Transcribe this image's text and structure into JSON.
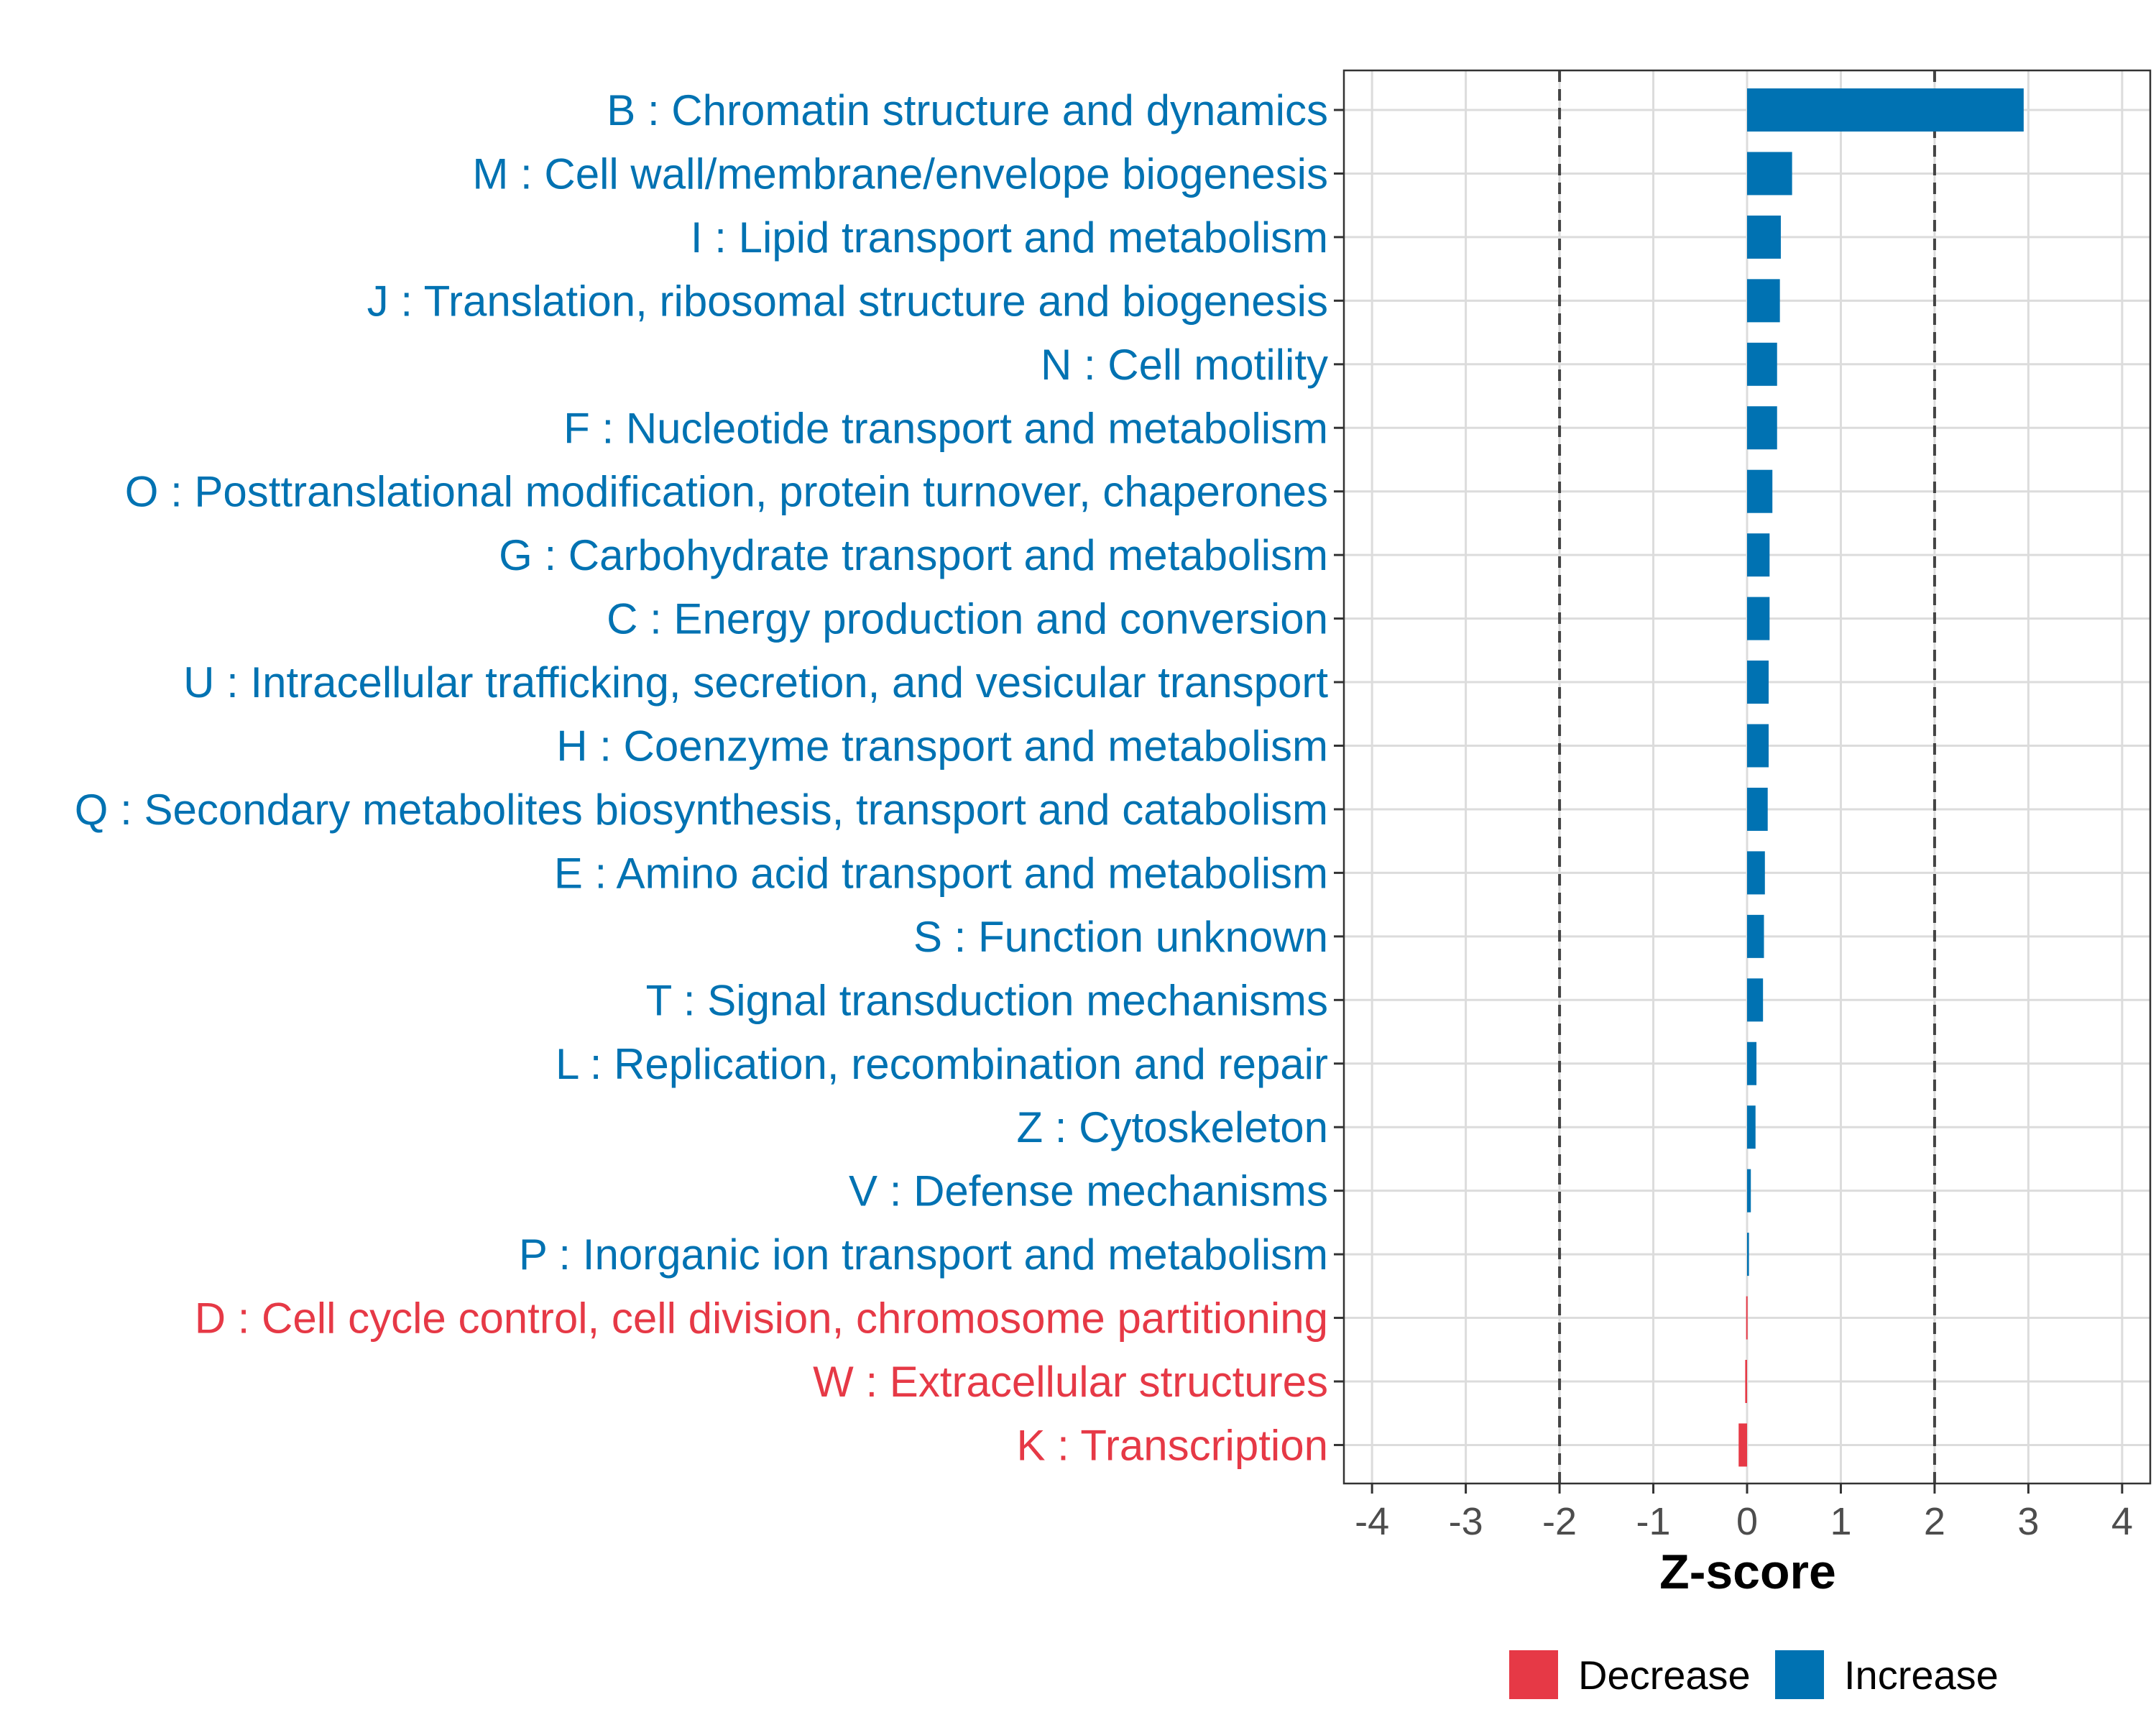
{
  "chart_data": {
    "type": "bar",
    "orientation": "horizontal",
    "xlabel": "Z-score",
    "ylabel": "",
    "xlim": [
      -4.3,
      4.3
    ],
    "xticks": [
      -4,
      -3,
      -2,
      -1,
      0,
      1,
      2,
      3,
      4
    ],
    "xtick_labels": [
      "-4",
      "-3",
      "-2",
      "-1",
      "0",
      "1",
      "2",
      "3",
      "4"
    ],
    "threshold_lines": [
      -2,
      2
    ],
    "grid": true,
    "legend_position": "bottom",
    "colors": {
      "Increase": "#0072b2",
      "Decrease": "#e63946"
    },
    "legend": [
      {
        "name": "Decrease",
        "color": "#e63946"
      },
      {
        "name": "Increase",
        "color": "#0072b2"
      }
    ],
    "categories": [
      "B : Chromatin structure and dynamics",
      "M : Cell wall/membrane/envelope biogenesis",
      "I : Lipid transport and metabolism",
      "J : Translation, ribosomal structure and biogenesis",
      "N : Cell motility",
      "F : Nucleotide transport and metabolism",
      "O : Posttranslational modification, protein turnover, chaperones",
      "G : Carbohydrate transport and metabolism",
      "C : Energy production and conversion",
      "U : Intracellular trafficking, secretion, and vesicular transport",
      "H : Coenzyme transport and metabolism",
      "Q : Secondary metabolites biosynthesis, transport and catabolism",
      "E : Amino acid transport and metabolism",
      "S : Function unknown",
      "T : Signal transduction mechanisms",
      "L : Replication, recombination and repair",
      "Z : Cytoskeleton",
      "V : Defense mechanisms",
      "P : Inorganic ion transport and metabolism",
      "D : Cell cycle control, cell division, chromosome partitioning",
      "W : Extracellular structures",
      "K : Transcription"
    ],
    "values": [
      2.95,
      0.48,
      0.36,
      0.35,
      0.32,
      0.32,
      0.27,
      0.24,
      0.24,
      0.23,
      0.23,
      0.22,
      0.19,
      0.18,
      0.17,
      0.1,
      0.09,
      0.04,
      0.02,
      -0.01,
      -0.02,
      -0.09
    ],
    "groups": [
      "Increase",
      "Increase",
      "Increase",
      "Increase",
      "Increase",
      "Increase",
      "Increase",
      "Increase",
      "Increase",
      "Increase",
      "Increase",
      "Increase",
      "Increase",
      "Increase",
      "Increase",
      "Increase",
      "Increase",
      "Increase",
      "Increase",
      "Decrease",
      "Decrease",
      "Decrease"
    ]
  }
}
